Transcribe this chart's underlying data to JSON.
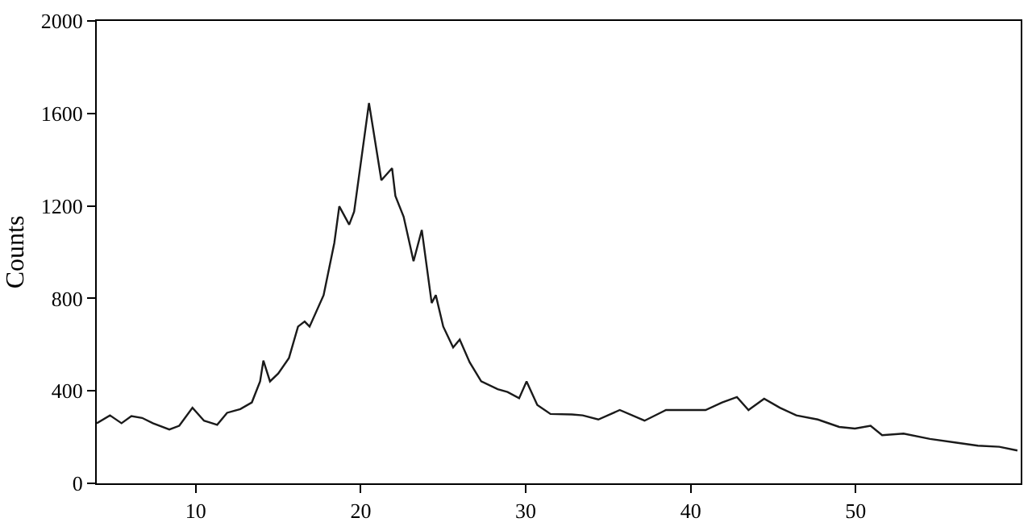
{
  "chart_data": {
    "type": "line",
    "ylabel": "Counts",
    "x": [
      4,
      4.8,
      5.5,
      6.1,
      6.75,
      7.4,
      8.4,
      9.0,
      9.8,
      10.5,
      11.3,
      11.9,
      12.7,
      13.4,
      13.9,
      14.1,
      14.5,
      15.0,
      15.65,
      16.2,
      16.6,
      16.9,
      17.75,
      18.4,
      18.7,
      19.3,
      19.6,
      20.5,
      21.25,
      21.9,
      22.1,
      22.6,
      23.2,
      23.7,
      24.3,
      24.55,
      25.0,
      25.6,
      26.0,
      26.6,
      27.3,
      28.3,
      28.9,
      29.6,
      30.05,
      30.7,
      31.5,
      32.8,
      33.45,
      34.4,
      35.7,
      37.2,
      38.5,
      39.9,
      40.9,
      41.9,
      42.8,
      43.5,
      44.45,
      45.4,
      46.4,
      47.7,
      49.0,
      49.95,
      50.9,
      51.6,
      52.9,
      54.5,
      56.1,
      57.4,
      58.7,
      59.8
    ],
    "series": [
      {
        "color": "#1a1a1a",
        "values": [
          260,
          294,
          260,
          291,
          283,
          260,
          233,
          249,
          327,
          271,
          253,
          305,
          321,
          350,
          441,
          531,
          441,
          475,
          542,
          678,
          700,
          678,
          814,
          1040,
          1198,
          1119,
          1175,
          1645,
          1311,
          1363,
          1243,
          1153,
          961,
          1096,
          780,
          814,
          678,
          588,
          622,
          524,
          441,
          407,
          395,
          368,
          441,
          339,
          300,
          298,
          294,
          276,
          317,
          271,
          317,
          317,
          317,
          350,
          373,
          317,
          366,
          327,
          294,
          276,
          244,
          237,
          249,
          208,
          215,
          192,
          176,
          163,
          158,
          142
        ]
      }
    ],
    "xlim": [
      4,
      60
    ],
    "xticks": [
      10,
      20,
      30,
      40,
      50
    ],
    "ylim": [
      0,
      2000
    ],
    "yticks": [
      0,
      400,
      800,
      1200,
      1600,
      2000
    ],
    "grid": false,
    "marker": "none",
    "line_style": "solid"
  }
}
